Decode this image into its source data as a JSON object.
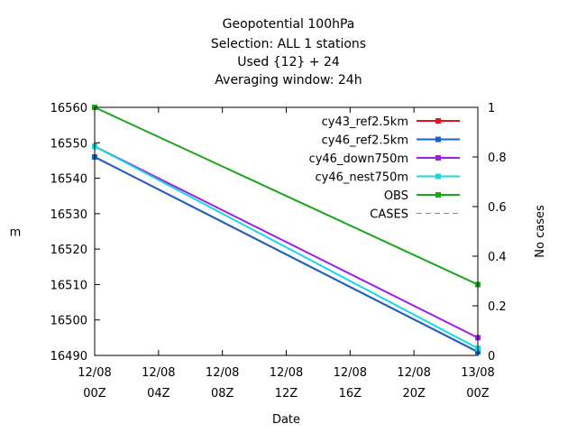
{
  "chart_data": {
    "type": "line",
    "title_lines": [
      "Geopotential 100hPa",
      "Selection: ALL      1 stations",
      "Used {12} + 24",
      "Averaging window: 24h"
    ],
    "xlabel": "Date",
    "ylabel": "m",
    "y2label": "No cases",
    "xlim": [
      0,
      24
    ],
    "ylim": [
      16490,
      16560
    ],
    "y2lim": [
      0,
      1
    ],
    "x_ticks": [
      {
        "x": 0,
        "line1": "12/08",
        "line2": "00Z"
      },
      {
        "x": 4,
        "line1": "12/08",
        "line2": "04Z"
      },
      {
        "x": 8,
        "line1": "12/08",
        "line2": "08Z"
      },
      {
        "x": 12,
        "line1": "12/08",
        "line2": "12Z"
      },
      {
        "x": 16,
        "line1": "12/08",
        "line2": "16Z"
      },
      {
        "x": 20,
        "line1": "12/08",
        "line2": "20Z"
      },
      {
        "x": 24,
        "line1": "13/08",
        "line2": "00Z"
      }
    ],
    "y_ticks": [
      16490,
      16500,
      16510,
      16520,
      16530,
      16540,
      16550,
      16560
    ],
    "y2_ticks": [
      "0",
      "0.2",
      "0.4",
      "0.6",
      "0.8",
      "1"
    ],
    "grid": false,
    "legend_position": "top-right",
    "series": [
      {
        "name": "cy43_ref2.5km",
        "color": "#e8101a",
        "x": [
          0,
          24
        ],
        "y": [
          16546,
          16491
        ],
        "dashed": false
      },
      {
        "name": "cy46_ref2.5km",
        "color": "#1565c8",
        "x": [
          0,
          24
        ],
        "y": [
          16546,
          16491
        ],
        "dashed": false
      },
      {
        "name": "cy46_down750m",
        "color": "#a020e0",
        "x": [
          0,
          24
        ],
        "y": [
          16549,
          16495
        ],
        "dashed": false
      },
      {
        "name": "cy46_nest750m",
        "color": "#18d8e0",
        "x": [
          0,
          24
        ],
        "y": [
          16549,
          16492
        ],
        "dashed": false
      },
      {
        "name": "OBS",
        "color": "#1aa61a",
        "x": [
          0,
          24
        ],
        "y": [
          16560,
          16510
        ],
        "dashed": false
      },
      {
        "name": "CASES",
        "color": "#888888",
        "x": [],
        "y": [],
        "dashed": true
      }
    ]
  }
}
